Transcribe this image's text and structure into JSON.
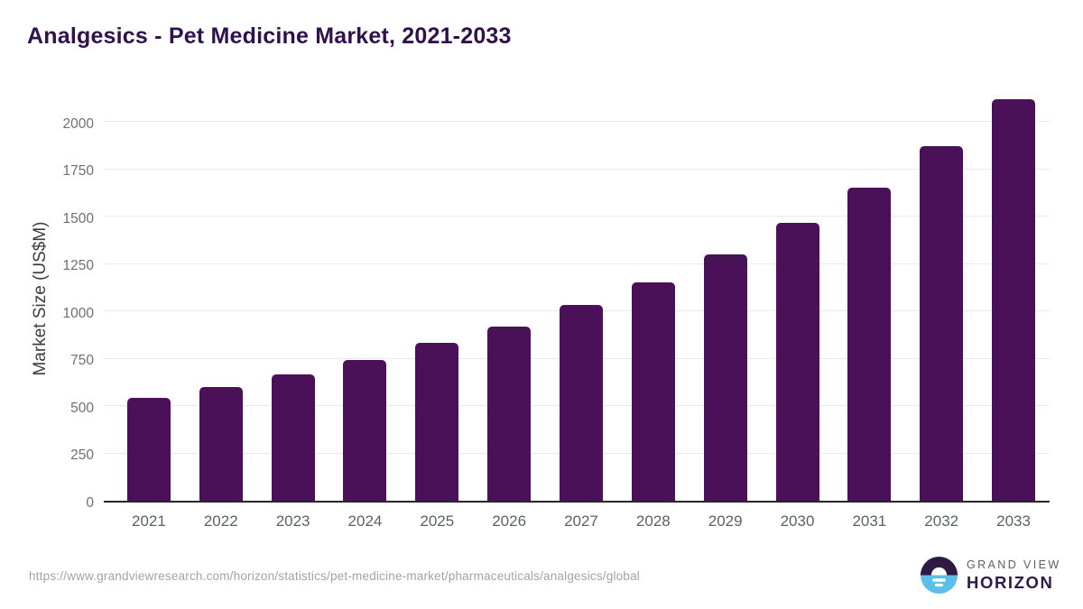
{
  "title": "Analgesics - Pet Medicine Market, 2021-2033",
  "chart_data": {
    "type": "bar",
    "title": "Analgesics - Pet Medicine Market, 2021-2033",
    "categories": [
      "2021",
      "2022",
      "2023",
      "2024",
      "2025",
      "2026",
      "2027",
      "2028",
      "2029",
      "2030",
      "2031",
      "2032",
      "2033"
    ],
    "values": [
      545,
      600,
      665,
      745,
      835,
      920,
      1035,
      1155,
      1300,
      1465,
      1655,
      1870,
      2120
    ],
    "xlabel": "",
    "ylabel": "Market Size (US$M)",
    "ylim": [
      0,
      2153
    ],
    "yticks": [
      0,
      250,
      500,
      750,
      1000,
      1250,
      1500,
      1750,
      2000
    ],
    "grid": "horizontal",
    "legend": "none",
    "bar_color": "#4a1058"
  },
  "footer": {
    "source_url": "https://www.grandviewresearch.com/horizon/statistics/pet-medicine-market/pharmaceuticals/analgesics/global",
    "logo": {
      "line1": "GRAND VIEW",
      "line2": "HORIZON"
    }
  },
  "colors": {
    "title_text": "#2f124d",
    "bar": "#4a1058",
    "gridline": "#e9e9e9",
    "axis_line": "#26262b",
    "logo_purple": "#2d1b45",
    "logo_blue": "#5bbfe9"
  }
}
